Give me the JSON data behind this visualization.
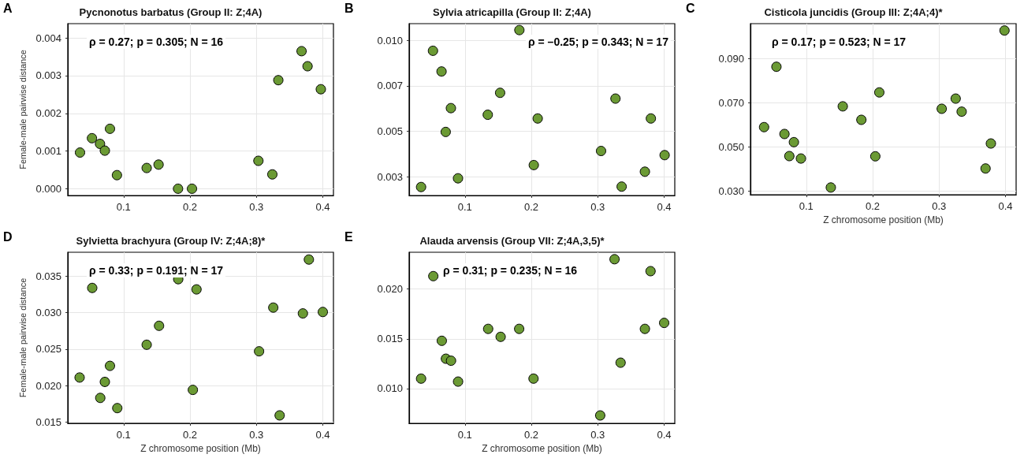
{
  "chart_data": [
    {
      "type": "scatter",
      "title": "Pycnonotus barbatus (Group II: Z;4A)",
      "ylabel": "Female-male pairwise distance",
      "annotations": [
        "A",
        "ρ = 0.27; p = 0.305; N = 16"
      ],
      "x": [
        0.0344,
        0.0524,
        0.0645,
        0.0718,
        0.0795,
        0.09,
        0.1348,
        0.1527,
        0.182,
        0.203,
        0.303,
        0.324,
        0.333,
        0.368,
        0.377,
        0.397
      ],
      "series": [
        {
          "color": "#6b9a34",
          "values": [
            0.00096,
            0.00134,
            0.00119,
            0.00101,
            0.00159,
            0.00036,
            0.00055,
            0.00064,
            0,
            0,
            0.00074,
            0.00038,
            0.00288,
            0.00365,
            0.00325,
            0.00264
          ]
        }
      ],
      "xlim": [
        0.016,
        0.416
      ],
      "xticks": [
        0.1,
        0.2,
        0.3,
        0.4
      ],
      "ylim": [
        -0.00018,
        0.00438
      ],
      "yticks": [
        {
          "value": 0,
          "label": "0.000"
        },
        {
          "value": 0.001,
          "label": "0.001"
        },
        {
          "value": 0.002,
          "label": "0.002"
        },
        {
          "value": 0.003,
          "label": "0.003"
        },
        {
          "value": 0.004,
          "label": "0.004"
        }
      ],
      "grid": true,
      "marker": "circle"
    },
    {
      "type": "scatter",
      "title": "Sylvia atricapilla (Group II: Z;4A)",
      "annotations": [
        "B",
        "ρ = –0.25; p = 0.343; N = 17"
      ],
      "x": [
        0.034,
        0.0519,
        0.0648,
        0.0711,
        0.0789,
        0.0896,
        0.1344,
        0.153,
        0.182,
        0.2037,
        0.2096,
        0.305,
        0.3267,
        0.336,
        0.371,
        0.38,
        0.4007
      ],
      "series": [
        {
          "color": "#6b9a34",
          "values": [
            0.00251,
            0.00909,
            0.00809,
            0.00517,
            0.00632,
            0.00293,
            0.006,
            0.00706,
            0.01009,
            0.00357,
            0.00582,
            0.00425,
            0.00678,
            0.00253,
            0.00325,
            0.00582,
            0.00405
          ]
        }
      ],
      "xlim": [
        0.016,
        0.416
      ],
      "xticks": [
        0.1,
        0.2,
        0.3,
        0.4
      ],
      "ylim": [
        0.0021,
        0.0104
      ],
      "yticks": [
        {
          "value": 0.003,
          "label": "0.003"
        },
        {
          "value": 0.0052,
          "label": "0.005"
        },
        {
          "value": 0.0074,
          "label": "0.007"
        },
        {
          "value": 0.0096,
          "label": "0.010"
        }
      ],
      "grid": true,
      "marker": "circle"
    },
    {
      "type": "scatter",
      "title": "Cisticola juncidis (Group III: Z;4A;4)*",
      "xlabel": "Z chromosome position (Mb)",
      "annotations": [
        "C",
        "ρ = 0.17; p = 0.523; N = 17"
      ],
      "x": [
        0.0365,
        0.0551,
        0.0672,
        0.0745,
        0.0814,
        0.092,
        0.137,
        0.155,
        0.183,
        0.204,
        0.21,
        0.304,
        0.325,
        0.334,
        0.37,
        0.378,
        0.3985
      ],
      "series": [
        {
          "color": "#6b9a34",
          "values": [
            0.059,
            0.0863,
            0.0559,
            0.0459,
            0.0522,
            0.0448,
            0.0317,
            0.0684,
            0.0623,
            0.0458,
            0.0747,
            0.0673,
            0.0719,
            0.066,
            0.0403,
            0.0516,
            0.1027
          ]
        }
      ],
      "xlim": [
        0.016,
        0.416
      ],
      "xticks": [
        0.1,
        0.2,
        0.3,
        0.4
      ],
      "ylim": [
        0.0284,
        0.1058
      ],
      "yticks": [
        {
          "value": 0.03,
          "label": "0.030"
        },
        {
          "value": 0.05,
          "label": "0.050"
        },
        {
          "value": 0.07,
          "label": "0.070"
        },
        {
          "value": 0.09,
          "label": "0.090"
        }
      ],
      "grid": true,
      "marker": "circle"
    },
    {
      "type": "scatter",
      "title": "Sylvietta brachyura (Group IV: Z;4A;8)*",
      "xlabel": "Z chromosome position (Mb)",
      "ylabel": "Female-male pairwise distance",
      "annotations": [
        "D",
        "ρ = 0.33; p = 0.191; N = 17"
      ],
      "x": [
        0.0338,
        0.0528,
        0.0649,
        0.0718,
        0.0795,
        0.0905,
        0.1348,
        0.1534,
        0.1823,
        0.2043,
        0.2098,
        0.304,
        0.3254,
        0.335,
        0.37,
        0.379,
        0.4
      ],
      "series": [
        {
          "color": "#6b9a34",
          "values": [
            0.0211,
            0.0334,
            0.0183,
            0.0205,
            0.0227,
            0.0169,
            0.0256,
            0.0282,
            0.0346,
            0.0194,
            0.0332,
            0.0247,
            0.0307,
            0.0159,
            0.0299,
            0.0373,
            0.0301
          ]
        }
      ],
      "xlim": [
        0.016,
        0.416
      ],
      "xticks": [
        0.1,
        0.2,
        0.3,
        0.4
      ],
      "ylim": [
        0.0148,
        0.0383
      ],
      "yticks": [
        {
          "value": 0.015,
          "label": "0.015"
        },
        {
          "value": 0.02,
          "label": "0.020"
        },
        {
          "value": 0.025,
          "label": "0.025"
        },
        {
          "value": 0.03,
          "label": "0.030"
        },
        {
          "value": 0.035,
          "label": "0.035"
        }
      ],
      "grid": true,
      "marker": "circle"
    },
    {
      "type": "scatter",
      "title": "Alauda arvensis (Group VII: Z;4A,3,5)*",
      "xlabel": "Z chromosome position (Mb)",
      "annotations": [
        "E",
        "ρ = 0.31; p = 0.235; N = 16"
      ],
      "x": [
        0.034,
        0.0524,
        0.0652,
        0.0714,
        0.0791,
        0.0897,
        0.135,
        0.1538,
        0.1817,
        0.2033,
        0.3037,
        0.3253,
        0.3344,
        0.371,
        0.3795,
        0.4
      ],
      "series": [
        {
          "color": "#6b9a34",
          "values": [
            0.011,
            0.0213,
            0.0148,
            0.013,
            0.0128,
            0.0107,
            0.016,
            0.0152,
            0.016,
            0.011,
            0.0073,
            0.023,
            0.0126,
            0.016,
            0.0218,
            0.0166
          ]
        }
      ],
      "xlim": [
        0.016,
        0.416
      ],
      "xticks": [
        0.1,
        0.2,
        0.3,
        0.4
      ],
      "ylim": [
        0.0065,
        0.0237
      ],
      "yticks": [
        {
          "value": 0.01,
          "label": "0.010"
        },
        {
          "value": 0.015,
          "label": "0.015"
        },
        {
          "value": 0.02,
          "label": "0.020"
        }
      ],
      "grid": true,
      "marker": "circle"
    }
  ]
}
